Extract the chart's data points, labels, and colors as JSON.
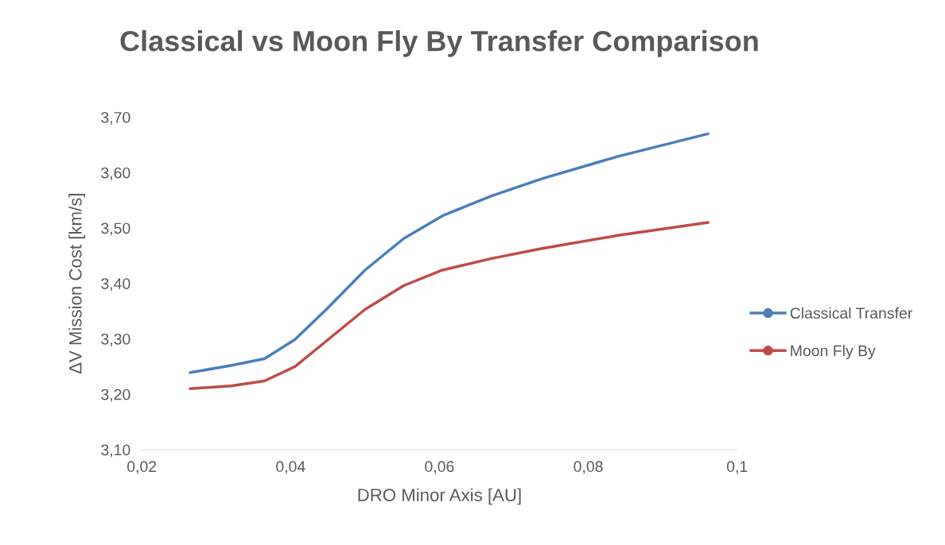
{
  "chart_data": {
    "type": "line",
    "title": "Classical vs Moon Fly By Transfer Comparison",
    "xlabel": "DRO Minor Axis [AU]",
    "ylabel": "ΔV Mission Cost [km/s]",
    "series": [
      {
        "name": "Classical Transfer",
        "color": "#4a7ebb",
        "x": [
          0.0265,
          0.032,
          0.0365,
          0.0406,
          0.0448,
          0.05,
          0.0552,
          0.0604,
          0.067,
          0.0738,
          0.0842,
          0.0961
        ],
        "values": [
          3.239,
          3.252,
          3.264,
          3.299,
          3.353,
          3.424,
          3.481,
          3.522,
          3.558,
          3.589,
          3.63,
          3.67
        ]
      },
      {
        "name": "Moon Fly By",
        "color": "#be4b48",
        "x": [
          0.0265,
          0.032,
          0.0365,
          0.0406,
          0.0448,
          0.05,
          0.0552,
          0.0604,
          0.067,
          0.0738,
          0.0842,
          0.0961
        ],
        "values": [
          3.21,
          3.215,
          3.224,
          3.25,
          3.296,
          3.353,
          3.396,
          3.424,
          3.445,
          3.463,
          3.487,
          3.51
        ]
      }
    ],
    "xlim": [
      0.02,
      0.1
    ],
    "xticks": [
      {
        "value": 0.02,
        "label": "0,02"
      },
      {
        "value": 0.04,
        "label": "0,04"
      },
      {
        "value": 0.06,
        "label": "0,06"
      },
      {
        "value": 0.08,
        "label": "0,08"
      },
      {
        "value": 0.1,
        "label": "0,1"
      }
    ],
    "ylim": [
      3.1,
      3.7
    ],
    "yticks": [
      {
        "value": 3.1,
        "label": "3,10"
      },
      {
        "value": 3.2,
        "label": "3,20"
      },
      {
        "value": 3.3,
        "label": "3,30"
      },
      {
        "value": 3.4,
        "label": "3,40"
      },
      {
        "value": 3.5,
        "label": "3,50"
      },
      {
        "value": 3.6,
        "label": "3,60"
      },
      {
        "value": 3.7,
        "label": "3,70"
      }
    ],
    "grid": false,
    "legend": "right",
    "line_style": "solid"
  }
}
